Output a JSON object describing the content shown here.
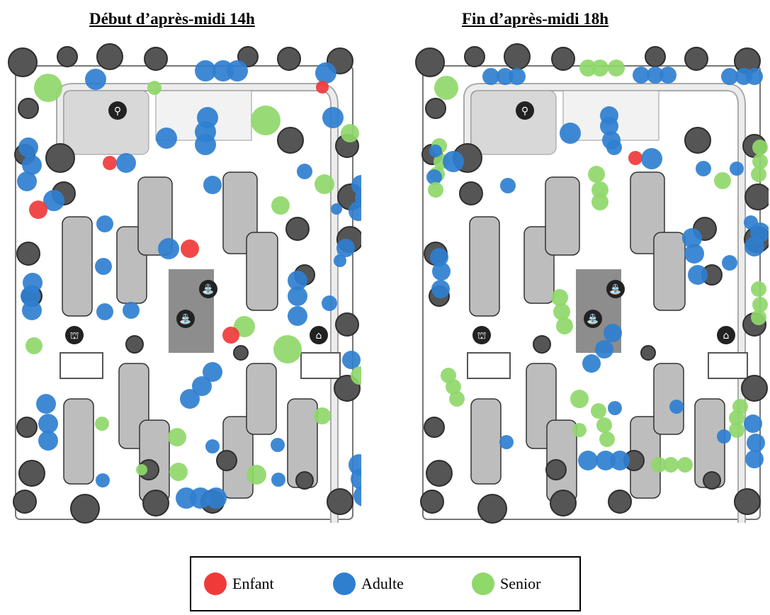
{
  "titles": {
    "left": "Début d’après-midi 14h",
    "right": "Fin d’après-midi 18h"
  },
  "legend": {
    "enfant": "Enfant",
    "adulte": "Adulte",
    "senior": "Senior"
  },
  "colors": {
    "enfant": "#f03a3a",
    "adulte": "#2f7fd0",
    "senior": "#8fd86a"
  },
  "map_icons": [
    "restroom-icon",
    "fountain-icon",
    "fountain-icon",
    "picnic-icon",
    "shelter-icon"
  ]
}
